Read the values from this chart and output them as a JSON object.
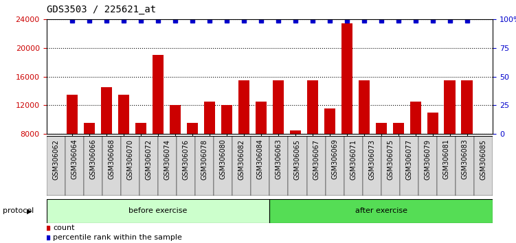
{
  "title": "GDS3503 / 225621_at",
  "categories": [
    "GSM306062",
    "GSM306064",
    "GSM306066",
    "GSM306068",
    "GSM306070",
    "GSM306072",
    "GSM306074",
    "GSM306076",
    "GSM306078",
    "GSM306080",
    "GSM306082",
    "GSM306084",
    "GSM306063",
    "GSM306065",
    "GSM306067",
    "GSM306069",
    "GSM306071",
    "GSM306073",
    "GSM306075",
    "GSM306077",
    "GSM306079",
    "GSM306081",
    "GSM306083",
    "GSM306085"
  ],
  "bar_values": [
    13500,
    9500,
    14500,
    13500,
    9500,
    19000,
    12000,
    9500,
    12500,
    12000,
    15500,
    12500,
    15500,
    8500,
    15500,
    11500,
    23500,
    15500,
    9500,
    9500,
    12500,
    11000,
    15500,
    15500
  ],
  "percentile_values": [
    99,
    99,
    99,
    99,
    99,
    99,
    99,
    99,
    99,
    99,
    99,
    99,
    99,
    99,
    99,
    99,
    99,
    99,
    99,
    99,
    99,
    99,
    99,
    99
  ],
  "bar_color": "#cc0000",
  "dot_color": "#0000cc",
  "ylim_left": [
    8000,
    24000
  ],
  "ylim_right": [
    0,
    100
  ],
  "yticks_left": [
    8000,
    12000,
    16000,
    20000,
    24000
  ],
  "yticks_right": [
    0,
    25,
    50,
    75,
    100
  ],
  "ytick_labels_right": [
    "0",
    "25",
    "50",
    "75",
    "100%"
  ],
  "before_exercise_count": 12,
  "after_exercise_count": 12,
  "protocol_label": "protocol",
  "before_label": "before exercise",
  "after_label": "after exercise",
  "legend_count_label": "count",
  "legend_pct_label": "percentile rank within the sample",
  "bg_color": "#ffffff",
  "tick_color_left": "#cc0000",
  "tick_color_right": "#0000cc",
  "title_fontsize": 10,
  "axis_fontsize": 8,
  "label_fontsize": 8,
  "xtick_fontsize": 7
}
